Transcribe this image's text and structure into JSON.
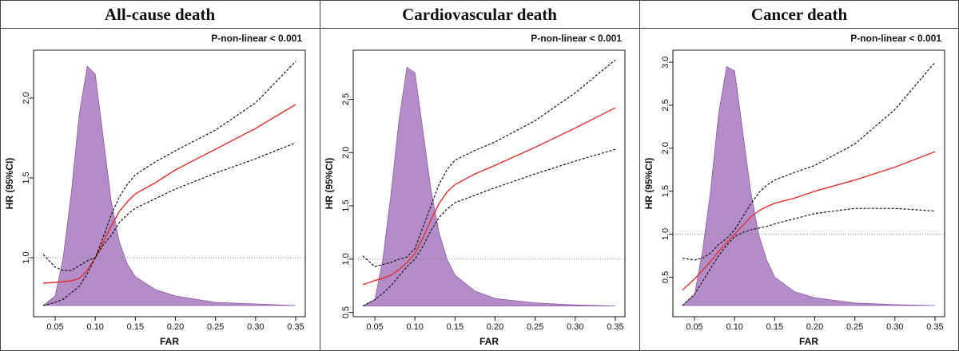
{
  "chart_data": [
    {
      "type": "line",
      "title": "All-cause death",
      "annotation": "P-non-linear < 0.001",
      "x_label": "FAR",
      "y_label": "HR (95%CI)",
      "x": [
        0.035,
        0.05,
        0.06,
        0.07,
        0.08,
        0.09,
        0.1,
        0.11,
        0.12,
        0.13,
        0.14,
        0.15,
        0.175,
        0.2,
        0.25,
        0.3,
        0.35
      ],
      "xlim": [
        0.023,
        0.362
      ],
      "xticks": [
        0.05,
        {
          "value": 0.1,
          "label": "0.10"
        },
        0.15,
        {
          "value": 0.2,
          "label": "0.20"
        },
        0.25,
        {
          "value": 0.3,
          "label": "0.30"
        },
        0.35
      ],
      "ylim": [
        0.63,
        2.3
      ],
      "yticks": [
        {
          "value": 1,
          "label": "1.0"
        },
        1.5,
        {
          "value": 2,
          "label": "2.0"
        }
      ],
      "reference_line": 1,
      "density": {
        "color": "#b48cc8",
        "values": [
          0.7,
          0.76,
          1.0,
          1.4,
          1.9,
          2.2,
          2.15,
          1.75,
          1.35,
          1.1,
          0.96,
          0.88,
          0.8,
          0.76,
          0.72,
          0.71,
          0.7
        ]
      },
      "series": [
        {
          "color": "#e0302a",
          "line_style": "solid",
          "values": [
            0.84,
            0.845,
            0.85,
            0.855,
            0.87,
            0.92,
            1.0,
            1.1,
            1.2,
            1.29,
            1.35,
            1.4,
            1.47,
            1.55,
            1.68,
            1.81,
            1.96
          ]
        },
        {
          "color": "#111111",
          "line_style": "dashed",
          "values": [
            1.02,
            0.94,
            0.92,
            0.92,
            0.95,
            0.98,
            1.0,
            1.13,
            1.27,
            1.38,
            1.46,
            1.52,
            1.6,
            1.67,
            1.8,
            1.97,
            2.23
          ]
        },
        {
          "color": "#111111",
          "line_style": "dashed",
          "values": [
            0.7,
            0.72,
            0.74,
            0.78,
            0.82,
            0.9,
            1.0,
            1.08,
            1.14,
            1.22,
            1.27,
            1.31,
            1.37,
            1.43,
            1.53,
            1.62,
            1.72
          ]
        }
      ]
    },
    {
      "type": "line",
      "title": "Cardiovascular death",
      "annotation": "P-non-linear < 0.001",
      "x_label": "FAR",
      "y_label": "HR (95%CI)",
      "x": [
        0.035,
        0.05,
        0.06,
        0.07,
        0.08,
        0.09,
        0.1,
        0.11,
        0.12,
        0.13,
        0.14,
        0.15,
        0.175,
        0.2,
        0.25,
        0.3,
        0.35
      ],
      "xlim": [
        0.023,
        0.362
      ],
      "xticks": [
        0.05,
        {
          "value": 0.1,
          "label": "0.10"
        },
        0.15,
        {
          "value": 0.2,
          "label": "0.20"
        },
        0.25,
        {
          "value": 0.3,
          "label": "0.30"
        },
        0.35
      ],
      "ylim": [
        0.46,
        2.96
      ],
      "yticks": [
        0.5,
        {
          "value": 1,
          "label": "1.0"
        },
        1.5,
        {
          "value": 2,
          "label": "2.0"
        },
        2.5
      ],
      "reference_line": 1,
      "density": {
        "color": "#b48cc8",
        "values": [
          0.56,
          0.62,
          1.0,
          1.6,
          2.3,
          2.8,
          2.75,
          2.2,
          1.65,
          1.25,
          1.0,
          0.85,
          0.7,
          0.63,
          0.59,
          0.57,
          0.56
        ]
      },
      "series": [
        {
          "color": "#e0302a",
          "line_style": "solid",
          "values": [
            0.76,
            0.8,
            0.82,
            0.85,
            0.9,
            0.97,
            1.05,
            1.2,
            1.37,
            1.52,
            1.63,
            1.7,
            1.8,
            1.88,
            2.05,
            2.23,
            2.42
          ]
        },
        {
          "color": "#111111",
          "line_style": "dashed",
          "values": [
            1.03,
            0.93,
            0.95,
            0.97,
            1.0,
            1.02,
            1.1,
            1.3,
            1.5,
            1.7,
            1.84,
            1.93,
            2.02,
            2.1,
            2.3,
            2.56,
            2.87
          ]
        },
        {
          "color": "#111111",
          "line_style": "dashed",
          "values": [
            0.56,
            0.62,
            0.68,
            0.75,
            0.84,
            0.93,
            1.0,
            1.12,
            1.27,
            1.39,
            1.47,
            1.53,
            1.6,
            1.67,
            1.8,
            1.92,
            2.03
          ]
        }
      ]
    },
    {
      "type": "line",
      "title": "Cancer death",
      "annotation": "P-non-linear < 0.001",
      "x_label": "FAR",
      "y_label": "HR (95%CI)",
      "x": [
        0.035,
        0.05,
        0.06,
        0.07,
        0.08,
        0.09,
        0.1,
        0.11,
        0.12,
        0.13,
        0.14,
        0.15,
        0.175,
        0.2,
        0.25,
        0.3,
        0.35
      ],
      "xlim": [
        0.023,
        0.362
      ],
      "xticks": [
        0.05,
        {
          "value": 0.1,
          "label": "0.10"
        },
        0.15,
        {
          "value": 0.2,
          "label": "0.20"
        },
        0.25,
        {
          "value": 0.3,
          "label": "0.30"
        },
        0.35
      ],
      "ylim": [
        0.04,
        3.14
      ],
      "yticks": [
        0.5,
        {
          "value": 1,
          "label": "1.0"
        },
        1.5,
        {
          "value": 2,
          "label": "2.0"
        },
        2.5,
        {
          "value": 3,
          "label": "3.0"
        }
      ],
      "reference_line": 1,
      "density": {
        "color": "#b48cc8",
        "values": [
          0.17,
          0.3,
          0.8,
          1.5,
          2.4,
          2.95,
          2.9,
          2.2,
          1.5,
          1.0,
          0.7,
          0.5,
          0.33,
          0.26,
          0.2,
          0.18,
          0.17
        ]
      },
      "series": [
        {
          "color": "#e0302a",
          "line_style": "solid",
          "values": [
            0.35,
            0.48,
            0.58,
            0.68,
            0.8,
            0.9,
            1.0,
            1.1,
            1.2,
            1.27,
            1.32,
            1.36,
            1.42,
            1.5,
            1.63,
            1.78,
            1.96
          ]
        },
        {
          "color": "#111111",
          "line_style": "dashed",
          "values": [
            0.72,
            0.7,
            0.72,
            0.78,
            0.88,
            0.95,
            1.05,
            1.2,
            1.35,
            1.48,
            1.57,
            1.63,
            1.72,
            1.8,
            2.05,
            2.45,
            3.0
          ]
        },
        {
          "color": "#111111",
          "line_style": "dashed",
          "values": [
            0.17,
            0.3,
            0.45,
            0.6,
            0.75,
            0.87,
            0.97,
            1.02,
            1.05,
            1.07,
            1.09,
            1.12,
            1.18,
            1.24,
            1.3,
            1.3,
            1.27
          ]
        }
      ]
    }
  ]
}
